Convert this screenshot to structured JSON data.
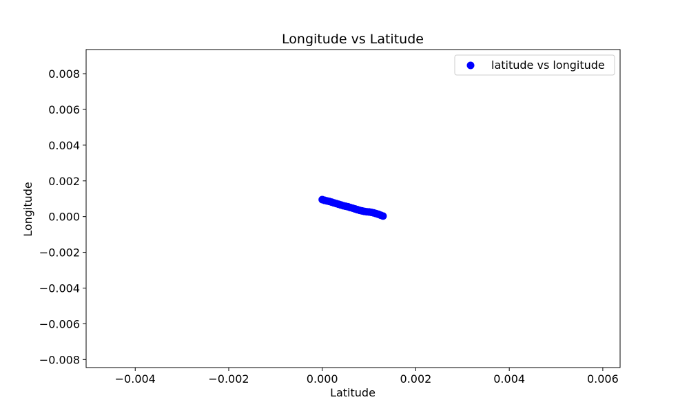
{
  "chart_data": {
    "type": "scatter",
    "title": "Longitude vs Latitude",
    "xlabel": "Latitude",
    "ylabel": "Longitude",
    "xlim": [
      -0.00505,
      0.00637
    ],
    "ylim": [
      -0.00845,
      0.00935
    ],
    "xticks": [
      -0.004,
      -0.002,
      0.0,
      0.002,
      0.004,
      0.006
    ],
    "xtick_labels": [
      "−0.004",
      "−0.002",
      "0.000",
      "0.002",
      "0.004",
      "0.006"
    ],
    "yticks": [
      -0.008,
      -0.006,
      -0.004,
      -0.002,
      0.0,
      0.002,
      0.004,
      0.006,
      0.008
    ],
    "ytick_labels": [
      "−0.008",
      "−0.006",
      "−0.004",
      "−0.002",
      "0.000",
      "0.002",
      "0.004",
      "0.006",
      "0.008"
    ],
    "grid": false,
    "legend_position": "top-right",
    "series": [
      {
        "name": "latitude vs longitude",
        "color": "#0000ff",
        "x": [
          0.0,
          5e-05,
          0.0001,
          0.00015,
          0.0002,
          0.00025,
          0.0003,
          0.00035,
          0.0004,
          0.00045,
          0.0005,
          0.00055,
          0.0006,
          0.00065,
          0.0007,
          0.00075,
          0.0008,
          0.00085,
          0.0009,
          0.00095,
          0.001,
          0.00105,
          0.0011,
          0.00115,
          0.0012,
          0.00125,
          0.0013
        ],
        "y": [
          0.00095,
          0.00091,
          0.00088,
          0.00085,
          0.00081,
          0.00077,
          0.00073,
          0.00069,
          0.00065,
          0.00061,
          0.00058,
          0.00055,
          0.00051,
          0.00047,
          0.00043,
          0.00039,
          0.00035,
          0.00032,
          0.00029,
          0.00027,
          0.00026,
          0.00024,
          0.00021,
          0.00017,
          0.00013,
          8e-05,
          3e-05
        ]
      }
    ]
  }
}
